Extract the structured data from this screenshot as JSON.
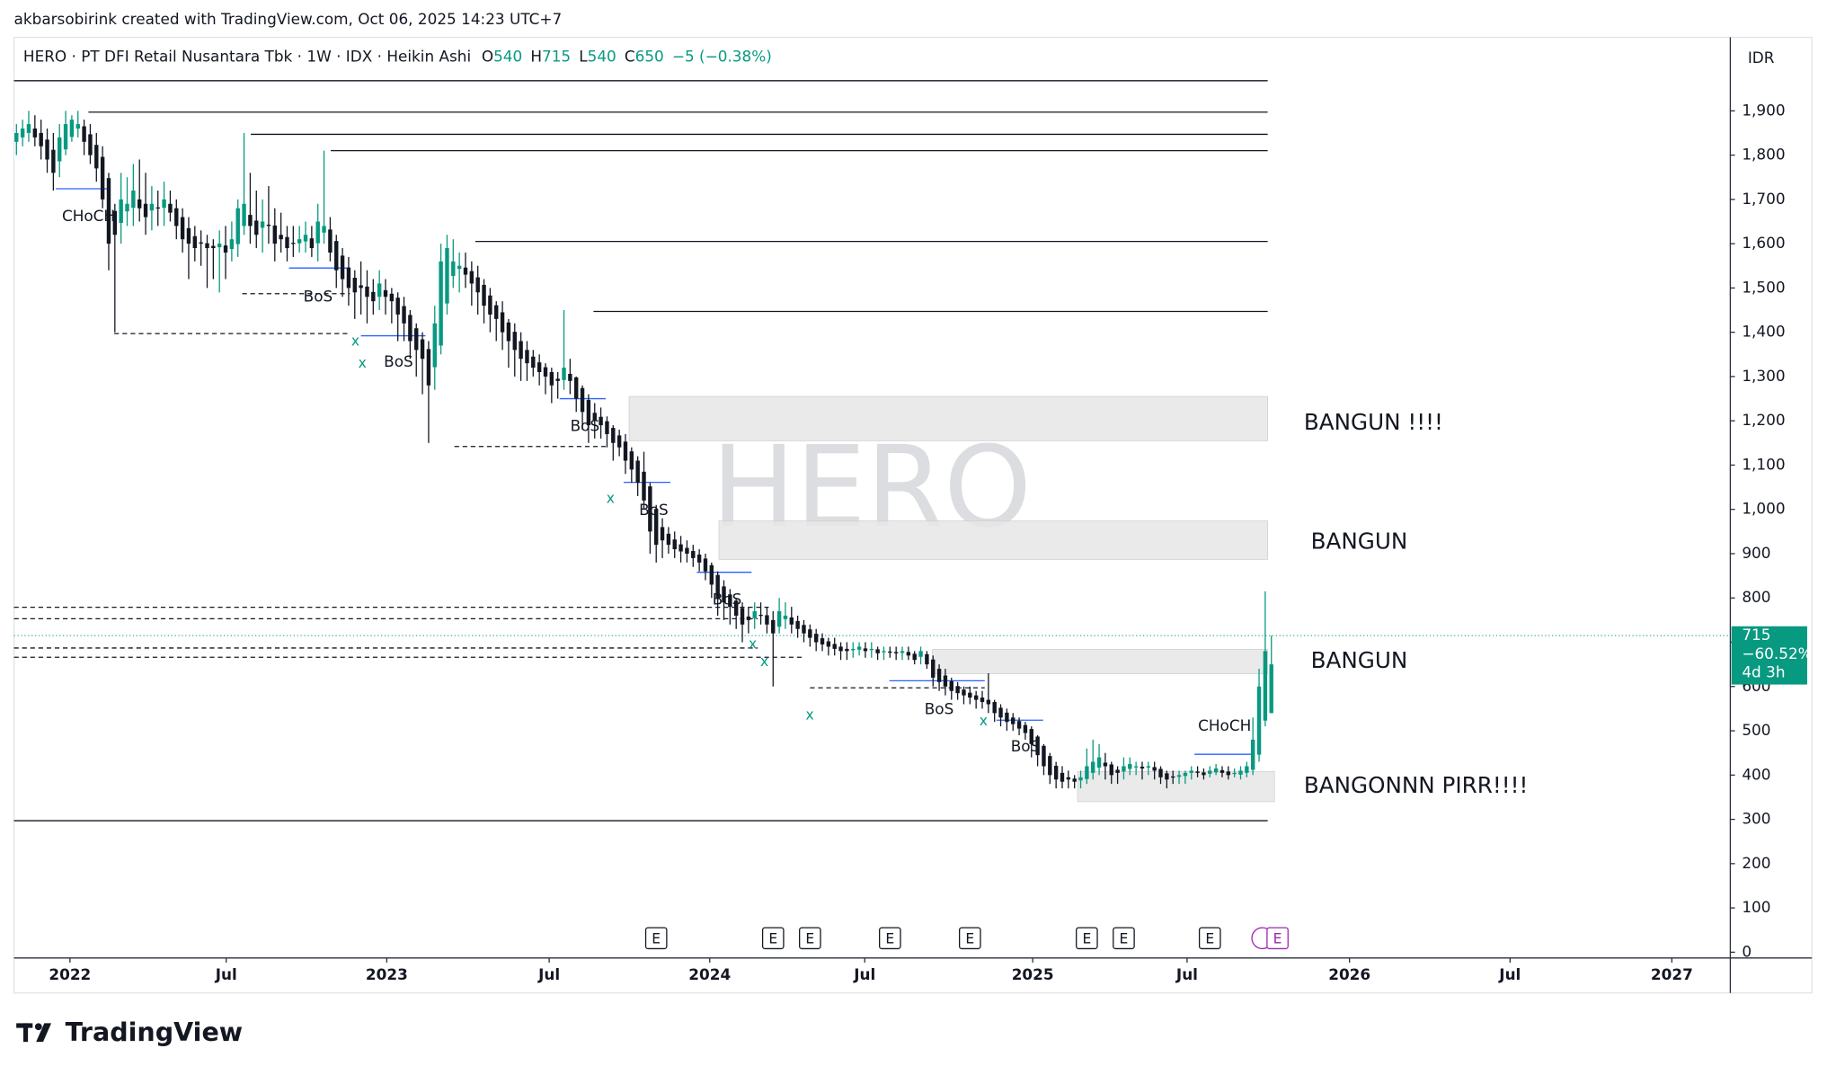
{
  "header": "akbarsobirink created with TradingView.com, Oct 06, 2025 14:23 UTC+7",
  "brand": "TradingView",
  "chart_data": {
    "type": "candlestick",
    "symbol_watermark": "HERO",
    "legend_title": "HERO · PT DFI Retail Nusantara Tbk · 1W · IDX · Heikin Ashi",
    "ohlc_labels": [
      "O",
      "H",
      "L",
      "C"
    ],
    "change": "−5 (−0.38%)",
    "currency": "IDR",
    "up_color": "#089981",
    "down_color": "#131722",
    "xlim": [
      -0.4,
      278.6
    ],
    "ylim": [
      -13,
      2066
    ],
    "grid": false,
    "xticks": [
      {
        "value": 8.7,
        "label": "2022"
      },
      {
        "value": 34.1,
        "label": "Jul"
      },
      {
        "value": 60.2,
        "label": "2023"
      },
      {
        "value": 86.6,
        "label": "Jul"
      },
      {
        "value": 112.7,
        "label": "2024"
      },
      {
        "value": 137.9,
        "label": "Jul"
      },
      {
        "value": 165.2,
        "label": "2025"
      },
      {
        "value": 190.3,
        "label": "Jul"
      },
      {
        "value": 216.7,
        "label": "2026"
      },
      {
        "value": 242.8,
        "label": "Jul"
      },
      {
        "value": 269.1,
        "label": "2027"
      }
    ],
    "yticks": [
      0,
      100,
      200,
      300,
      400,
      500,
      600,
      700,
      800,
      900,
      {
        "value": 1000,
        "label": "1,000"
      },
      {
        "value": 1100,
        "label": "1,100"
      },
      {
        "value": 1200,
        "label": "1,200"
      },
      {
        "value": 1300,
        "label": "1,300"
      },
      {
        "value": 1400,
        "label": "1,400"
      },
      {
        "value": 1500,
        "label": "1,500"
      },
      {
        "value": 1600,
        "label": "1,600"
      },
      {
        "value": 1700,
        "label": "1,700"
      },
      {
        "value": 1800,
        "label": "1,800"
      },
      {
        "value": 1900,
        "label": "1,900"
      }
    ],
    "last_price": 715,
    "last_change": "−60.52%",
    "countdown": "4d 3h",
    "candles": [
      [
        1830,
        1870,
        1800,
        1850
      ],
      [
        1840,
        1880,
        1820,
        1860
      ],
      [
        1850,
        1900,
        1830,
        1870
      ],
      [
        1860,
        1890,
        1820,
        1840
      ],
      [
        1850,
        1880,
        1790,
        1820
      ],
      [
        1835,
        1860,
        1760,
        1790
      ],
      [
        1812,
        1850,
        1720,
        1760
      ],
      [
        1786,
        1870,
        1750,
        1840
      ],
      [
        1813,
        1900,
        1800,
        1870
      ],
      [
        1841,
        1890,
        1830,
        1880
      ],
      [
        1860,
        1900,
        1840,
        1870
      ],
      [
        1865,
        1880,
        1800,
        1830
      ],
      [
        1847,
        1870,
        1780,
        1800
      ],
      [
        1823,
        1850,
        1740,
        1770
      ],
      [
        1796,
        1820,
        1680,
        1700
      ],
      [
        1748,
        1760,
        1540,
        1600
      ],
      [
        1674,
        1690,
        1400,
        1620
      ],
      [
        1647,
        1760,
        1600,
        1700
      ],
      [
        1673,
        1750,
        1640,
        1690
      ],
      [
        1681,
        1780,
        1640,
        1720
      ],
      [
        1700,
        1790,
        1650,
        1680
      ],
      [
        1690,
        1760,
        1620,
        1660
      ],
      [
        1675,
        1730,
        1630,
        1690
      ],
      [
        1682,
        1720,
        1640,
        1680
      ],
      [
        1681,
        1740,
        1640,
        1700
      ],
      [
        1690,
        1720,
        1650,
        1670
      ],
      [
        1680,
        1700,
        1610,
        1640
      ],
      [
        1660,
        1680,
        1580,
        1610
      ],
      [
        1635,
        1660,
        1520,
        1600
      ],
      [
        1617,
        1640,
        1560,
        1590
      ],
      [
        1603,
        1630,
        1550,
        1600
      ],
      [
        1601,
        1620,
        1500,
        1590
      ],
      [
        1595,
        1610,
        1520,
        1590
      ],
      [
        1592,
        1630,
        1490,
        1600
      ],
      [
        1596,
        1640,
        1520,
        1580
      ],
      [
        1588,
        1650,
        1560,
        1610
      ],
      [
        1599,
        1700,
        1570,
        1680
      ],
      [
        1640,
        1850,
        1620,
        1690
      ],
      [
        1665,
        1760,
        1600,
        1640
      ],
      [
        1652,
        1720,
        1590,
        1620
      ],
      [
        1636,
        1700,
        1580,
        1650
      ],
      [
        1643,
        1730,
        1600,
        1640
      ],
      [
        1641,
        1680,
        1560,
        1600
      ],
      [
        1620,
        1670,
        1580,
        1610
      ],
      [
        1615,
        1640,
        1560,
        1590
      ],
      [
        1602,
        1640,
        1570,
        1600
      ],
      [
        1601,
        1640,
        1580,
        1610
      ],
      [
        1605,
        1650,
        1580,
        1620
      ],
      [
        1612,
        1640,
        1570,
        1590
      ],
      [
        1601,
        1690,
        1560,
        1650
      ],
      [
        1625,
        1810,
        1600,
        1640
      ],
      [
        1632,
        1660,
        1560,
        1580
      ],
      [
        1606,
        1620,
        1500,
        1540
      ],
      [
        1573,
        1590,
        1480,
        1520
      ],
      [
        1546,
        1570,
        1460,
        1500
      ],
      [
        1523,
        1540,
        1430,
        1490
      ],
      [
        1506,
        1560,
        1440,
        1500
      ],
      [
        1503,
        1540,
        1420,
        1480
      ],
      [
        1491,
        1520,
        1440,
        1470
      ],
      [
        1480,
        1540,
        1450,
        1510
      ],
      [
        1495,
        1520,
        1440,
        1480
      ],
      [
        1487,
        1500,
        1420,
        1470
      ],
      [
        1478,
        1490,
        1380,
        1440
      ],
      [
        1459,
        1480,
        1380,
        1420
      ],
      [
        1439,
        1450,
        1340,
        1380
      ],
      [
        1409,
        1420,
        1300,
        1360
      ],
      [
        1384,
        1400,
        1260,
        1340
      ],
      [
        1362,
        1380,
        1150,
        1280
      ],
      [
        1321,
        1460,
        1270,
        1420
      ],
      [
        1370,
        1600,
        1350,
        1560
      ],
      [
        1465,
        1620,
        1440,
        1590
      ],
      [
        1527,
        1610,
        1500,
        1560
      ],
      [
        1543,
        1580,
        1490,
        1550
      ],
      [
        1546,
        1580,
        1500,
        1530
      ],
      [
        1538,
        1560,
        1460,
        1510
      ],
      [
        1524,
        1550,
        1440,
        1490
      ],
      [
        1507,
        1520,
        1420,
        1460
      ],
      [
        1483,
        1500,
        1400,
        1440
      ],
      [
        1461,
        1470,
        1380,
        1430
      ],
      [
        1445,
        1470,
        1360,
        1400
      ],
      [
        1422,
        1430,
        1320,
        1380
      ],
      [
        1401,
        1420,
        1300,
        1360
      ],
      [
        1380,
        1400,
        1290,
        1340
      ],
      [
        1360,
        1380,
        1290,
        1330
      ],
      [
        1345,
        1360,
        1300,
        1320
      ],
      [
        1332,
        1350,
        1280,
        1310
      ],
      [
        1321,
        1330,
        1260,
        1300
      ],
      [
        1310,
        1320,
        1240,
        1280
      ],
      [
        1295,
        1310,
        1250,
        1290
      ],
      [
        1292,
        1450,
        1270,
        1320
      ],
      [
        1306,
        1340,
        1260,
        1290
      ],
      [
        1298,
        1300,
        1220,
        1250
      ],
      [
        1274,
        1280,
        1180,
        1220
      ],
      [
        1247,
        1260,
        1150,
        1190
      ],
      [
        1218,
        1240,
        1160,
        1200
      ],
      [
        1209,
        1230,
        1160,
        1190
      ],
      [
        1199,
        1210,
        1140,
        1170
      ],
      [
        1184,
        1190,
        1110,
        1150
      ],
      [
        1167,
        1180,
        1120,
        1140
      ],
      [
        1153,
        1170,
        1080,
        1110
      ],
      [
        1131,
        1140,
        1060,
        1090
      ],
      [
        1110,
        1120,
        1030,
        1060
      ],
      [
        1085,
        1130,
        1000,
        1020
      ],
      [
        1052,
        1060,
        900,
        950
      ],
      [
        1001,
        1010,
        880,
        920
      ],
      [
        960,
        980,
        890,
        930
      ],
      [
        945,
        960,
        900,
        920
      ],
      [
        932,
        950,
        890,
        910
      ],
      [
        921,
        940,
        880,
        905
      ],
      [
        913,
        930,
        880,
        900
      ],
      [
        906,
        920,
        870,
        890
      ],
      [
        898,
        910,
        860,
        880
      ],
      [
        889,
        900,
        840,
        860
      ],
      [
        874,
        880,
        800,
        830
      ],
      [
        852,
        860,
        760,
        800
      ],
      [
        826,
        840,
        750,
        790
      ],
      [
        808,
        820,
        740,
        780
      ],
      [
        794,
        800,
        730,
        760
      ],
      [
        777,
        790,
        700,
        740
      ],
      [
        758,
        780,
        720,
        750
      ],
      [
        754,
        790,
        730,
        770
      ],
      [
        762,
        790,
        740,
        760
      ],
      [
        761,
        780,
        720,
        740
      ],
      [
        750,
        770,
        600,
        720
      ],
      [
        735,
        800,
        720,
        770
      ],
      [
        752,
        790,
        730,
        760
      ],
      [
        756,
        780,
        720,
        740
      ],
      [
        748,
        760,
        710,
        730
      ],
      [
        739,
        750,
        700,
        720
      ],
      [
        729,
        740,
        690,
        710
      ],
      [
        719,
        730,
        680,
        700
      ],
      [
        709,
        720,
        680,
        695
      ],
      [
        702,
        710,
        670,
        690
      ],
      [
        696,
        710,
        670,
        685
      ],
      [
        690,
        700,
        660,
        680
      ],
      [
        685,
        700,
        660,
        680
      ],
      [
        682,
        700,
        665,
        685
      ],
      [
        683,
        700,
        670,
        690
      ],
      [
        686,
        700,
        665,
        680
      ],
      [
        683,
        700,
        665,
        685
      ],
      [
        684,
        690,
        660,
        675
      ],
      [
        679,
        690,
        660,
        680
      ],
      [
        679,
        690,
        665,
        678
      ],
      [
        678,
        690,
        660,
        675
      ],
      [
        676,
        690,
        660,
        680
      ],
      [
        678,
        690,
        660,
        670
      ],
      [
        674,
        680,
        650,
        660
      ],
      [
        667,
        690,
        650,
        680
      ],
      [
        673,
        680,
        640,
        650
      ],
      [
        661,
        670,
        600,
        620
      ],
      [
        640,
        650,
        590,
        610
      ],
      [
        625,
        640,
        580,
        600
      ],
      [
        612,
        620,
        570,
        590
      ],
      [
        601,
        610,
        570,
        585
      ],
      [
        593,
        600,
        560,
        580
      ],
      [
        586,
        600,
        560,
        575
      ],
      [
        580,
        590,
        550,
        570
      ],
      [
        575,
        590,
        550,
        565
      ],
      [
        570,
        630,
        540,
        560
      ],
      [
        565,
        570,
        520,
        540
      ],
      [
        552,
        560,
        510,
        530
      ],
      [
        541,
        550,
        500,
        520
      ],
      [
        530,
        540,
        500,
        515
      ],
      [
        522,
        530,
        490,
        505
      ],
      [
        513,
        520,
        480,
        495
      ],
      [
        504,
        510,
        440,
        470
      ],
      [
        487,
        490,
        420,
        445
      ],
      [
        466,
        470,
        400,
        420
      ],
      [
        443,
        450,
        380,
        400
      ],
      [
        421,
        430,
        370,
        390
      ],
      [
        405,
        420,
        370,
        385
      ],
      [
        395,
        410,
        370,
        390
      ],
      [
        392,
        400,
        370,
        385
      ],
      [
        388,
        410,
        370,
        395
      ],
      [
        391,
        460,
        380,
        420
      ],
      [
        405,
        480,
        390,
        430
      ],
      [
        417,
        470,
        400,
        440
      ],
      [
        428,
        450,
        390,
        420
      ],
      [
        424,
        430,
        380,
        400
      ],
      [
        412,
        420,
        380,
        405
      ],
      [
        408,
        440,
        390,
        420
      ],
      [
        414,
        440,
        400,
        425
      ],
      [
        419,
        430,
        400,
        420
      ],
      [
        419,
        430,
        390,
        415
      ],
      [
        417,
        430,
        400,
        420
      ],
      [
        418,
        430,
        390,
        410
      ],
      [
        414,
        420,
        380,
        395
      ],
      [
        404,
        410,
        370,
        390
      ],
      [
        397,
        410,
        380,
        395
      ],
      [
        396,
        410,
        380,
        400
      ],
      [
        398,
        410,
        380,
        405
      ],
      [
        405,
        420,
        390,
        410
      ],
      [
        408,
        420,
        395,
        405
      ],
      [
        406,
        415,
        390,
        400
      ],
      [
        403,
        420,
        395,
        410
      ],
      [
        406,
        425,
        400,
        415
      ],
      [
        411,
        420,
        395,
        405
      ],
      [
        408,
        420,
        390,
        400
      ],
      [
        404,
        415,
        395,
        405
      ],
      [
        401,
        420,
        390,
        410
      ],
      [
        405,
        430,
        395,
        420
      ],
      [
        412,
        530,
        400,
        480
      ],
      [
        446,
        640,
        430,
        600
      ],
      [
        523,
        815,
        510,
        680
      ],
      [
        540,
        715,
        540,
        650
      ]
    ],
    "levels": [
      {
        "price": 1968,
        "from": -0.4,
        "to": 203.4
      },
      {
        "price": 1897,
        "from": 11.7,
        "to": 203.4
      },
      {
        "price": 1847,
        "from": 38.1,
        "to": 203.4
      },
      {
        "price": 1810,
        "from": 51.1,
        "to": 203.4
      },
      {
        "price": 1605,
        "from": 74.6,
        "to": 203.4
      },
      {
        "price": 1447,
        "from": 93.8,
        "to": 203.4
      },
      {
        "price": 297,
        "from": -0.4,
        "to": 203.4
      }
    ],
    "dashed_levels": [
      {
        "price": 1487,
        "from": 36.7,
        "to": 54.2
      },
      {
        "price": 1397,
        "from": 15.9,
        "to": 54.2
      },
      {
        "price": 1142,
        "from": 71.2,
        "to": 95.8
      },
      {
        "price": 779,
        "from": -0.4,
        "to": 122.3
      },
      {
        "price": 753,
        "from": -0.4,
        "to": 120.5
      },
      {
        "price": 687,
        "from": -0.4,
        "to": 120.5
      },
      {
        "price": 666,
        "from": -0.4,
        "to": 128
      },
      {
        "price": 597,
        "from": 129,
        "to": 157.4
      }
    ],
    "structure": [
      {
        "price": 1724,
        "from": 6.4,
        "to": 15.3
      },
      {
        "price": 1545,
        "from": 44.3,
        "to": 54.2
      },
      {
        "price": 1392,
        "from": 56,
        "to": 66.5
      },
      {
        "price": 1250,
        "from": 88.3,
        "to": 95.8
      },
      {
        "price": 1061,
        "from": 98.7,
        "to": 106.3
      },
      {
        "price": 858,
        "from": 110.6,
        "to": 119.5
      },
      {
        "price": 613,
        "from": 141.9,
        "to": 157.4
      },
      {
        "price": 524,
        "from": 159.3,
        "to": 166.9
      },
      {
        "price": 447,
        "from": 191.5,
        "to": 201
      }
    ],
    "zones": [
      {
        "top": 1255,
        "bottom": 1155,
        "from": 99.6,
        "to": 203.4,
        "label": "BANGUN !!!!"
      },
      {
        "top": 974,
        "bottom": 887,
        "from": 114.2,
        "to": 203.4,
        "label": "BANGUN"
      },
      {
        "top": 684,
        "bottom": 629,
        "from": 148.9,
        "to": 203.4,
        "label": "BANGUN"
      },
      {
        "top": 408,
        "bottom": 340,
        "from": 172.5,
        "to": 204.5,
        "label": "BANGONNN PIRR!!!!"
      }
    ],
    "annotations": [
      "CHoCH",
      "BoS",
      "x",
      "x",
      "BoS",
      "BoS",
      "x",
      "BoS",
      "BoS",
      "x",
      "x",
      "x",
      "BoS",
      "x",
      "BoS",
      "CHoCH"
    ],
    "earnings_label": "E",
    "earnings": [
      104,
      123,
      129,
      142,
      155,
      174,
      180,
      194
    ],
    "next_earnings": 205
  }
}
